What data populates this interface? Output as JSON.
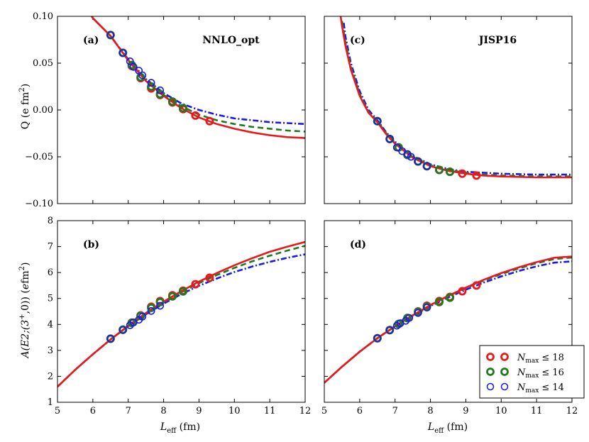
{
  "chart_data": [
    {
      "type": "line",
      "panel_label": "(a)",
      "title": "NNLO_opt",
      "xlabel": "",
      "ylabel": "Q (e fm²)",
      "xlim": [
        5,
        12
      ],
      "ylim": [
        -0.1,
        0.1
      ],
      "xticks": [
        "5",
        "6",
        "7",
        "8",
        "9",
        "10",
        "11",
        "12"
      ],
      "yticks": [
        "−0.10",
        "−0.05",
        "0.00",
        "0.05",
        "0.10"
      ],
      "yticks_values": [
        -0.1,
        -0.05,
        0.0,
        0.05,
        0.1
      ],
      "curves": [
        {
          "name": "Nmax ≤ 18",
          "color": "#e8191c",
          "style": "solid",
          "x": [
            5.9,
            6.0,
            6.5,
            7.0,
            7.5,
            8.0,
            8.5,
            9.0,
            9.5,
            10.0,
            10.5,
            11.0,
            11.5,
            12.0
          ],
          "y": [
            0.104,
            0.098,
            0.079,
            0.053,
            0.031,
            0.015,
            0.002,
            -0.008,
            -0.015,
            -0.02,
            -0.024,
            -0.027,
            -0.029,
            -0.03
          ]
        },
        {
          "name": "Nmax ≤ 16",
          "color": "#1f7a1f",
          "style": "dashed",
          "x": [
            5.9,
            6.0,
            6.5,
            7.0,
            7.5,
            8.0,
            8.5,
            9.0,
            9.5,
            10.0,
            10.5,
            11.0,
            11.5,
            12.0
          ],
          "y": [
            0.104,
            0.098,
            0.079,
            0.053,
            0.032,
            0.016,
            0.004,
            -0.005,
            -0.011,
            -0.015,
            -0.018,
            -0.02,
            -0.022,
            -0.023
          ]
        },
        {
          "name": "Nmax ≤ 14",
          "color": "#1a1ae6",
          "style": "dashdot",
          "x": [
            5.9,
            6.0,
            6.5,
            7.0,
            7.5,
            8.0,
            8.5,
            9.0,
            9.5,
            10.0,
            10.5,
            11.0,
            11.5,
            12.0
          ],
          "y": [
            0.104,
            0.098,
            0.079,
            0.054,
            0.033,
            0.018,
            0.007,
            0.0,
            -0.005,
            -0.009,
            -0.011,
            -0.013,
            -0.014,
            -0.015
          ]
        }
      ],
      "points": [
        {
          "name": "Nmax ≤ 18",
          "color": "#e8191c",
          "x": [
            6.5,
            6.85,
            7.1,
            7.35,
            7.65,
            7.9,
            8.25,
            8.55,
            8.9,
            9.3
          ],
          "y": [
            0.08,
            0.061,
            0.047,
            0.034,
            0.023,
            0.016,
            0.008,
            0.001,
            -0.006,
            -0.012
          ]
        },
        {
          "name": "Nmax ≤ 16",
          "color": "#1f7a1f",
          "x": [
            6.5,
            6.85,
            7.1,
            7.35,
            7.65,
            7.9,
            8.25,
            8.55
          ],
          "y": [
            0.08,
            0.061,
            0.048,
            0.035,
            0.025,
            0.017,
            0.009,
            0.002
          ]
        },
        {
          "name": "Nmax ≤ 14",
          "color": "#1a1ae6",
          "x": [
            6.5,
            6.85,
            7.05,
            7.15,
            7.3,
            7.4,
            7.65,
            7.9
          ],
          "y": [
            0.08,
            0.061,
            0.052,
            0.046,
            0.042,
            0.037,
            0.029,
            0.021
          ]
        }
      ]
    },
    {
      "type": "line",
      "panel_label": "(c)",
      "title": "JISP16",
      "xlabel": "",
      "ylabel": "",
      "xlim": [
        5,
        12
      ],
      "ylim": [
        -0.1,
        0.1
      ],
      "xticks": [
        "5",
        "6",
        "7",
        "8",
        "9",
        "10",
        "11",
        "12"
      ],
      "yticks": [],
      "yticks_values": [
        -0.1,
        -0.05,
        0.0,
        0.05,
        0.1
      ],
      "curves": [
        {
          "name": "Nmax ≤ 18",
          "color": "#e8191c",
          "style": "solid",
          "x": [
            5.45,
            5.5,
            5.6,
            5.75,
            6.0,
            6.25,
            6.5,
            6.75,
            7.0,
            7.5,
            8.0,
            8.5,
            9.0,
            9.5,
            10.0,
            11.0,
            12.0
          ],
          "y": [
            0.103,
            0.09,
            0.068,
            0.043,
            0.015,
            -0.003,
            -0.013,
            -0.026,
            -0.036,
            -0.051,
            -0.06,
            -0.065,
            -0.068,
            -0.07,
            -0.071,
            -0.072,
            -0.072
          ]
        },
        {
          "name": "Nmax ≤ 16",
          "color": "#1f7a1f",
          "style": "dashed",
          "x": [
            5.5,
            5.6,
            5.75,
            6.0,
            6.25,
            6.5,
            6.75,
            7.0,
            7.5,
            8.0,
            8.5,
            9.0,
            9.5,
            10.0,
            11.0,
            12.0
          ],
          "y": [
            0.095,
            0.072,
            0.046,
            0.017,
            -0.002,
            -0.012,
            -0.025,
            -0.035,
            -0.05,
            -0.059,
            -0.064,
            -0.067,
            -0.069,
            -0.07,
            -0.071,
            -0.071
          ]
        },
        {
          "name": "Nmax ≤ 14",
          "color": "#1a1ae6",
          "style": "dashdot",
          "x": [
            5.55,
            5.6,
            5.75,
            6.0,
            6.25,
            6.5,
            6.75,
            7.0,
            7.5,
            8.0,
            8.5,
            9.0,
            9.5,
            10.0,
            11.0,
            12.0
          ],
          "y": [
            0.093,
            0.078,
            0.05,
            0.02,
            0.0,
            -0.011,
            -0.024,
            -0.034,
            -0.049,
            -0.058,
            -0.063,
            -0.066,
            -0.067,
            -0.068,
            -0.069,
            -0.069
          ]
        }
      ],
      "points": [
        {
          "name": "Nmax ≤ 18",
          "color": "#e8191c",
          "x": [
            6.5,
            6.85,
            7.1,
            7.35,
            7.65,
            7.9,
            8.25,
            8.55,
            8.9,
            9.3
          ],
          "y": [
            -0.012,
            -0.031,
            -0.04,
            -0.048,
            -0.055,
            -0.06,
            -0.064,
            -0.066,
            -0.068,
            -0.07
          ]
        },
        {
          "name": "Nmax ≤ 16",
          "color": "#1f7a1f",
          "x": [
            6.5,
            6.85,
            7.1,
            7.35,
            7.65,
            7.9,
            8.25,
            8.55
          ],
          "y": [
            -0.012,
            -0.031,
            -0.04,
            -0.048,
            -0.055,
            -0.06,
            -0.064,
            -0.066
          ]
        },
        {
          "name": "Nmax ≤ 14",
          "color": "#1a1ae6",
          "x": [
            6.5,
            6.85,
            7.05,
            7.2,
            7.35,
            7.45,
            7.65,
            7.9
          ],
          "y": [
            -0.012,
            -0.031,
            -0.04,
            -0.044,
            -0.047,
            -0.05,
            -0.055,
            -0.06
          ]
        }
      ]
    },
    {
      "type": "line",
      "panel_label": "(b)",
      "title": "",
      "xlabel": "L_eff (fm)",
      "ylabel": "A(E2;(3⁺,0)) (e fm²)",
      "xlim": [
        5,
        12
      ],
      "ylim": [
        1,
        8
      ],
      "xticks": [
        "5",
        "6",
        "7",
        "8",
        "9",
        "10",
        "11",
        "12"
      ],
      "yticks": [
        "1",
        "2",
        "3",
        "4",
        "5",
        "6",
        "7",
        "8"
      ],
      "yticks_values": [
        1,
        2,
        3,
        4,
        5,
        6,
        7,
        8
      ],
      "curves": [
        {
          "name": "Nmax ≤ 18",
          "color": "#e8191c",
          "style": "solid",
          "x": [
            5.0,
            5.5,
            6.0,
            6.5,
            7.0,
            7.5,
            8.0,
            8.5,
            9.0,
            9.5,
            10.0,
            10.5,
            11.0,
            11.5,
            12.0
          ],
          "y": [
            1.6,
            2.25,
            2.85,
            3.42,
            3.95,
            4.44,
            4.88,
            5.28,
            5.65,
            5.98,
            6.28,
            6.55,
            6.8,
            7.0,
            7.18
          ]
        },
        {
          "name": "Nmax ≤ 16",
          "color": "#1f7a1f",
          "style": "dashed",
          "x": [
            5.0,
            5.5,
            6.0,
            6.5,
            7.0,
            7.5,
            8.0,
            8.5,
            9.0,
            9.5,
            10.0,
            10.5,
            11.0,
            11.5,
            12.0
          ],
          "y": [
            1.6,
            2.25,
            2.85,
            3.42,
            3.94,
            4.42,
            4.85,
            5.24,
            5.59,
            5.9,
            6.18,
            6.43,
            6.65,
            6.85,
            7.03
          ]
        },
        {
          "name": "Nmax ≤ 14",
          "color": "#1a1ae6",
          "style": "dashdot",
          "x": [
            5.0,
            5.5,
            6.0,
            6.5,
            7.0,
            7.5,
            8.0,
            8.5,
            9.0,
            9.5,
            10.0,
            10.5,
            11.0,
            11.5,
            12.0
          ],
          "y": [
            1.6,
            2.25,
            2.85,
            3.42,
            3.93,
            4.39,
            4.8,
            5.17,
            5.49,
            5.77,
            6.02,
            6.23,
            6.41,
            6.57,
            6.7
          ]
        }
      ],
      "points": [
        {
          "name": "Nmax ≤ 18",
          "color": "#e8191c",
          "x": [
            6.5,
            6.85,
            7.1,
            7.35,
            7.65,
            7.9,
            8.25,
            8.55,
            8.9,
            9.3
          ],
          "y": [
            3.45,
            3.8,
            4.07,
            4.35,
            4.68,
            4.9,
            5.12,
            5.3,
            5.55,
            5.8
          ]
        },
        {
          "name": "Nmax ≤ 16",
          "color": "#1f7a1f",
          "x": [
            6.5,
            6.85,
            7.1,
            7.35,
            7.65,
            7.9,
            8.25,
            8.55
          ],
          "y": [
            3.45,
            3.8,
            4.06,
            4.33,
            4.64,
            4.86,
            5.08,
            5.27
          ]
        },
        {
          "name": "Nmax ≤ 14",
          "color": "#1a1ae6",
          "x": [
            6.5,
            6.85,
            7.05,
            7.15,
            7.3,
            7.4,
            7.65,
            7.9
          ],
          "y": [
            3.45,
            3.78,
            3.97,
            4.08,
            4.18,
            4.3,
            4.52,
            4.72
          ]
        }
      ]
    },
    {
      "type": "line",
      "panel_label": "(d)",
      "title": "",
      "xlabel": "L_eff (fm)",
      "ylabel": "",
      "xlim": [
        5,
        12
      ],
      "ylim": [
        1,
        8
      ],
      "xticks": [
        "5",
        "6",
        "7",
        "8",
        "9",
        "10",
        "11",
        "12"
      ],
      "yticks": [],
      "yticks_values": [
        1,
        2,
        3,
        4,
        5,
        6,
        7,
        8
      ],
      "curves": [
        {
          "name": "Nmax ≤ 18",
          "color": "#e8191c",
          "style": "solid",
          "x": [
            5.0,
            5.5,
            6.0,
            6.5,
            7.0,
            7.5,
            8.0,
            8.5,
            9.0,
            9.5,
            10.0,
            10.5,
            11.0,
            11.5,
            12.0
          ],
          "y": [
            1.75,
            2.37,
            2.95,
            3.47,
            3.93,
            4.35,
            4.75,
            5.1,
            5.42,
            5.72,
            5.98,
            6.2,
            6.4,
            6.57,
            6.62
          ]
        },
        {
          "name": "Nmax ≤ 16",
          "color": "#1f7a1f",
          "style": "dashed",
          "x": [
            5.0,
            5.5,
            6.0,
            6.5,
            7.0,
            7.5,
            8.0,
            8.5,
            9.0,
            9.5,
            10.0,
            10.5,
            11.0,
            11.5,
            12.0
          ],
          "y": [
            1.75,
            2.37,
            2.95,
            3.47,
            3.93,
            4.35,
            4.74,
            5.09,
            5.4,
            5.69,
            5.94,
            6.16,
            6.36,
            6.52,
            6.58
          ]
        },
        {
          "name": "Nmax ≤ 14",
          "color": "#1a1ae6",
          "style": "dashdot",
          "x": [
            5.0,
            5.5,
            6.0,
            6.5,
            7.0,
            7.5,
            8.0,
            8.5,
            9.0,
            9.5,
            10.0,
            10.5,
            11.0,
            11.5,
            12.0
          ],
          "y": [
            1.75,
            2.37,
            2.95,
            3.47,
            3.92,
            4.33,
            4.71,
            5.04,
            5.34,
            5.61,
            5.85,
            6.06,
            6.24,
            6.38,
            6.43
          ]
        }
      ],
      "points": [
        {
          "name": "Nmax ≤ 18",
          "color": "#e8191c",
          "x": [
            6.5,
            6.85,
            7.1,
            7.35,
            7.65,
            7.9,
            8.25,
            8.55,
            8.9,
            9.3
          ],
          "y": [
            3.47,
            3.78,
            4.02,
            4.25,
            4.5,
            4.72,
            4.9,
            5.06,
            5.28,
            5.5
          ]
        },
        {
          "name": "Nmax ≤ 16",
          "color": "#1f7a1f",
          "x": [
            6.5,
            6.85,
            7.1,
            7.35,
            7.65,
            7.9,
            8.25,
            8.55
          ],
          "y": [
            3.47,
            3.78,
            4.02,
            4.24,
            4.48,
            4.68,
            4.86,
            5.03
          ]
        },
        {
          "name": "Nmax ≤ 14",
          "color": "#1a1ae6",
          "x": [
            6.5,
            6.85,
            7.05,
            7.15,
            7.3,
            7.4,
            7.65,
            7.9
          ],
          "y": [
            3.47,
            3.78,
            3.95,
            4.05,
            4.14,
            4.25,
            4.44,
            4.65
          ]
        }
      ]
    }
  ],
  "legend": {
    "location": "lower-right",
    "entries": [
      {
        "label": "N",
        "sub": "max",
        "rel": "≤ 18",
        "color": "#e8191c",
        "thick": true
      },
      {
        "label": "N",
        "sub": "max",
        "rel": "≤ 16",
        "color": "#1f7a1f",
        "thick": true
      },
      {
        "label": "N",
        "sub": "max",
        "rel": "≤ 14",
        "color": "#1a1ae6",
        "thick": false
      }
    ]
  },
  "axis_text": {
    "ylabel_top": "Q (e fm",
    "ylabel_top_sup": "2",
    "ylabel_top_end": ")",
    "ylabel_bottom_pre": "A(E2;(3",
    "ylabel_bottom_sup": "+",
    "ylabel_bottom_mid": ",0)) (",
    "ylabel_bottom_e": "e",
    "ylabel_bottom_fm": "fm",
    "ylabel_bottom_sup2": "2",
    "ylabel_bottom_end": ")",
    "xlabel_L": "L",
    "xlabel_sub": "eff",
    "xlabel_unit": " (fm)"
  }
}
